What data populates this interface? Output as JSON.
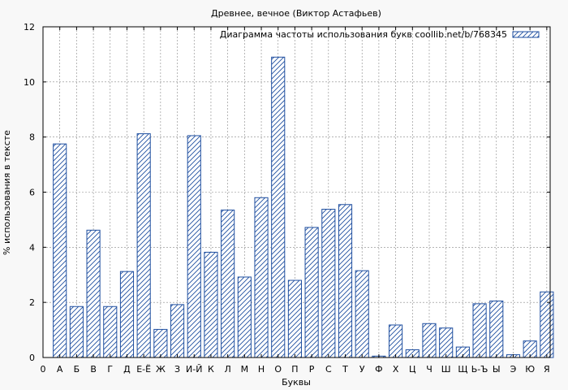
{
  "chart_data": {
    "type": "bar",
    "title": "Древнее, вечное (Виктор Астафьев)",
    "xlabel": "Буквы",
    "ylabel": "% использования в тексте",
    "ylim": [
      0,
      12
    ],
    "yticks": [
      0,
      2,
      4,
      6,
      8,
      10,
      12
    ],
    "grid": true,
    "legend_position": "top-right",
    "series": [
      {
        "name": "Диаграмма частоты использования букв coollib.net/b/768345",
        "color": "#1f4fa0",
        "pattern": "diagonal-hatch"
      }
    ],
    "x_tick_labels": [
      "0",
      "А",
      "Б",
      "В",
      "Г",
      "Д",
      "Е-Ё",
      "Ж",
      "З",
      "И-Й",
      "К",
      "Л",
      "М",
      "Н",
      "О",
      "П",
      "Р",
      "С",
      "Т",
      "У",
      "Ф",
      "Х",
      "Ц",
      "Ч",
      "Ш",
      "Щ",
      "Ь-Ъ",
      "Ы",
      "Э",
      "Ю",
      "Я"
    ],
    "categories": [
      "А",
      "Б",
      "В",
      "Г",
      "Д",
      "Е-Ё",
      "Ж",
      "З",
      "И-Й",
      "К",
      "Л",
      "М",
      "Н",
      "О",
      "П",
      "Р",
      "С",
      "Т",
      "У",
      "Ф",
      "Х",
      "Ц",
      "Ч",
      "Ш",
      "Щ",
      "Ь-Ъ",
      "Ы",
      "Э",
      "Ю",
      "Я"
    ],
    "values": [
      7.75,
      1.85,
      4.62,
      1.85,
      3.12,
      8.12,
      1.02,
      1.92,
      8.05,
      3.82,
      5.35,
      2.92,
      5.8,
      10.9,
      2.8,
      4.72,
      5.38,
      5.55,
      3.15,
      0.05,
      1.18,
      0.28,
      1.23,
      1.07,
      0.38,
      1.95,
      2.05,
      0.1,
      0.6,
      2.38
    ]
  }
}
